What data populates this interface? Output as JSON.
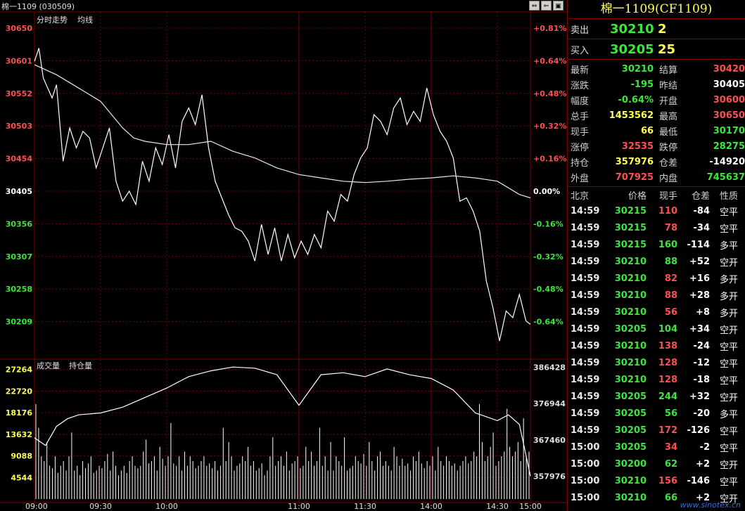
{
  "header": {
    "instrument_code": "棉一1109 (030509)"
  },
  "window_buttons": [
    "⇔",
    "⇐",
    "▣"
  ],
  "chart_data": [
    {
      "type": "line",
      "title": "分时走势",
      "legend": [
        "均线"
      ],
      "y_ticks": [
        "30650",
        "30601",
        "30552",
        "30503",
        "30454",
        "30405",
        "30356",
        "30307",
        "30258",
        "30209"
      ],
      "y_ticks_pct": [
        "+0.81%",
        "+0.64%",
        "+0.48%",
        "+0.32%",
        "+0.16%",
        "0.00%",
        "-0.16%",
        "-0.32%",
        "-0.48%",
        "-0.64%"
      ],
      "ylim": [
        30160,
        30650
      ],
      "prev_settle": 30405,
      "x_ticks": [
        "09:00",
        "09:30",
        "10:00",
        "11:00",
        "11:30",
        "14:00",
        "14:30",
        "15:00"
      ],
      "series": [
        {
          "name": "price",
          "x": [
            0,
            2,
            4,
            6,
            8,
            10,
            13,
            16,
            19,
            22,
            25,
            28,
            31,
            34,
            37,
            40,
            43,
            46,
            49,
            52,
            55,
            58,
            61,
            64,
            67,
            70,
            73,
            76,
            79,
            82,
            85,
            88,
            91,
            94,
            97,
            100,
            103,
            106,
            109,
            112,
            115,
            118,
            121,
            124,
            127,
            130,
            133,
            136,
            139,
            142,
            145,
            148,
            151,
            154,
            157,
            160,
            163,
            166,
            169,
            172,
            175,
            178,
            181,
            184,
            187,
            190,
            193,
            196,
            199,
            202,
            205,
            208,
            211,
            214,
            217,
            220,
            223,
            225
          ],
          "values": [
            30600,
            30620,
            30575,
            30560,
            30545,
            30565,
            30450,
            30500,
            30470,
            30495,
            30485,
            30440,
            30470,
            30500,
            30420,
            30390,
            30405,
            30385,
            30450,
            30420,
            30470,
            30445,
            30490,
            30440,
            30510,
            30530,
            30505,
            30550,
            30470,
            30420,
            30395,
            30370,
            30350,
            30345,
            30330,
            30300,
            30355,
            30310,
            30350,
            30300,
            30340,
            30305,
            30330,
            30310,
            30340,
            30320,
            30375,
            30360,
            30400,
            30390,
            30430,
            30455,
            30470,
            30520,
            30510,
            30490,
            30530,
            30545,
            30505,
            30525,
            30510,
            30560,
            30520,
            30495,
            30480,
            30455,
            30390,
            30395,
            30375,
            30345,
            30270,
            30230,
            30180,
            30225,
            30215,
            30250,
            30210,
            30205
          ]
        },
        {
          "name": "均线",
          "x": [
            0,
            10,
            20,
            30,
            35,
            40,
            45,
            50,
            60,
            70,
            80,
            90,
            100,
            110,
            120,
            130,
            140,
            150,
            160,
            170,
            180,
            190,
            200,
            210,
            220,
            225
          ],
          "values": [
            30595,
            30580,
            30560,
            30540,
            30520,
            30500,
            30485,
            30480,
            30475,
            30475,
            30480,
            30465,
            30455,
            30440,
            30430,
            30425,
            30420,
            30418,
            30420,
            30423,
            30425,
            30428,
            30425,
            30420,
            30400,
            30395
          ]
        }
      ]
    },
    {
      "type": "bar",
      "title": "成交量",
      "legend": [
        "持仓量"
      ],
      "y_ticks": [
        "27264",
        "22720",
        "18176",
        "13632",
        "9088",
        "4544"
      ],
      "y_ticks_right": [
        "386428",
        "376944",
        "367460",
        "357976"
      ],
      "ylim": [
        0,
        29000
      ],
      "oi_lim": [
        352000,
        388000
      ],
      "volumes": [
        20000,
        15000,
        9000,
        8000,
        12000,
        7000,
        6500,
        9000,
        5500,
        7000,
        8000,
        6000,
        9000,
        14000,
        6000,
        7000,
        5000,
        8000,
        6500,
        7500,
        9000,
        5500,
        6000,
        7000,
        6500,
        8000,
        9500,
        6000,
        10000,
        7000,
        5000,
        6000,
        7000,
        5500,
        8000,
        9000,
        7000,
        6500,
        7000,
        10000,
        12500,
        7500,
        8000,
        9000,
        6000,
        11000,
        8500,
        7000,
        9000,
        16000,
        7500,
        7000,
        9000,
        6000,
        10000,
        7000,
        9000,
        8000,
        6500,
        7000,
        8000,
        9000,
        7000,
        7500,
        6500,
        8000,
        6000,
        7000,
        15000,
        8000,
        12000,
        9000,
        6000,
        7000,
        7500,
        9000,
        8000,
        11000,
        7000,
        8000,
        6000,
        6500,
        7500,
        5000,
        6000,
        9000,
        13000,
        7000,
        8000,
        9000,
        7000,
        10000,
        6000,
        7500,
        8000,
        9000,
        6500,
        7000,
        11000,
        8000,
        10000,
        7000,
        8000,
        15000,
        7000,
        9000,
        6000,
        12000,
        6000,
        9000,
        8000,
        7000,
        13000,
        6000,
        6500,
        7000,
        9000,
        8000,
        7500,
        9500,
        7000,
        12000,
        8000,
        6000,
        9000,
        10000,
        7000,
        8000,
        7000,
        6000,
        11000,
        9000,
        7000,
        8500,
        7000,
        7500,
        6000,
        9000,
        8000,
        10000,
        7500,
        6500,
        8000,
        7000,
        9000,
        6000,
        11000,
        8000,
        7000,
        9000,
        8000,
        7000,
        7500,
        6000,
        7000,
        8000,
        9000,
        7500,
        8000,
        10000,
        9000,
        20000,
        12000,
        8000,
        9000,
        11000,
        14000,
        7000,
        8000,
        9000,
        10000,
        19000,
        11000,
        9000,
        10000,
        12000,
        8000,
        17000,
        9000,
        10000
      ],
      "open_interest": {
        "x": [
          0,
          5,
          10,
          15,
          20,
          30,
          40,
          50,
          60,
          70,
          80,
          90,
          100,
          110,
          120,
          130,
          140,
          150,
          160,
          170,
          180,
          190,
          200,
          210,
          215,
          220,
          225
        ],
        "values": [
          368000,
          366000,
          371000,
          373000,
          374000,
          374500,
          376000,
          378500,
          381000,
          384000,
          385500,
          386500,
          386200,
          384500,
          376500,
          384500,
          385000,
          384000,
          386000,
          384500,
          383500,
          380500,
          374500,
          372500,
          374000,
          371500,
          357976
        ]
      }
    }
  ],
  "panel": {
    "title": "棉一1109(CF1109)",
    "ask": {
      "label": "卖出",
      "price": "30210",
      "qty": "2"
    },
    "bid": {
      "label": "买入",
      "price": "30205",
      "qty": "25"
    },
    "stats": [
      {
        "k": "最新",
        "v": "30210",
        "vc": "green",
        "k2": "结算",
        "v2": "30420",
        "v2c": "red"
      },
      {
        "k": "涨跌",
        "v": "-195",
        "vc": "green",
        "k2": "昨结",
        "v2": "30405",
        "v2c": "white"
      },
      {
        "k": "幅度",
        "v": "-0.64%",
        "vc": "green",
        "k2": "开盘",
        "v2": "30600",
        "v2c": "red"
      },
      {
        "k": "总手",
        "v": "1453562",
        "vc": "yellow",
        "k2": "最高",
        "v2": "30650",
        "v2c": "red"
      },
      {
        "k": "现手",
        "v": "66",
        "vc": "yellow",
        "k2": "最低",
        "v2": "30170",
        "v2c": "green"
      },
      {
        "k": "涨停",
        "v": "32535",
        "vc": "red",
        "k2": "跌停",
        "v2": "28275",
        "v2c": "green"
      },
      {
        "k": "持仓",
        "v": "357976",
        "vc": "yellow",
        "k2": "仓差",
        "v2": "-14920",
        "v2c": "white"
      },
      {
        "k": "外盘",
        "v": "707925",
        "vc": "red",
        "k2": "内盘",
        "v2": "745637",
        "v2c": "green"
      }
    ],
    "trades_header": [
      "北京",
      "价格",
      "现手",
      "仓差",
      "性质"
    ],
    "trades": [
      {
        "t": "14:59",
        "p": "30215",
        "pc": "green",
        "q": "110",
        "qc": "red",
        "d": "-84",
        "n": "空平"
      },
      {
        "t": "14:59",
        "p": "30215",
        "pc": "green",
        "q": "78",
        "qc": "red",
        "d": "-34",
        "n": "空平"
      },
      {
        "t": "14:59",
        "p": "30215",
        "pc": "green",
        "q": "160",
        "qc": "green",
        "d": "-114",
        "n": "多平"
      },
      {
        "t": "14:59",
        "p": "30210",
        "pc": "green",
        "q": "88",
        "qc": "green",
        "d": "+52",
        "n": "空开"
      },
      {
        "t": "14:59",
        "p": "30210",
        "pc": "green",
        "q": "82",
        "qc": "red",
        "d": "+16",
        "n": "多开"
      },
      {
        "t": "14:59",
        "p": "30210",
        "pc": "green",
        "q": "88",
        "qc": "red",
        "d": "+28",
        "n": "多开"
      },
      {
        "t": "14:59",
        "p": "30210",
        "pc": "green",
        "q": "56",
        "qc": "red",
        "d": "+8",
        "n": "多开"
      },
      {
        "t": "14:59",
        "p": "30205",
        "pc": "green",
        "q": "104",
        "qc": "green",
        "d": "+34",
        "n": "空开"
      },
      {
        "t": "14:59",
        "p": "30210",
        "pc": "green",
        "q": "138",
        "qc": "red",
        "d": "-24",
        "n": "空平"
      },
      {
        "t": "14:59",
        "p": "30210",
        "pc": "green",
        "q": "128",
        "qc": "red",
        "d": "-12",
        "n": "空平"
      },
      {
        "t": "14:59",
        "p": "30210",
        "pc": "green",
        "q": "128",
        "qc": "red",
        "d": "-18",
        "n": "空平"
      },
      {
        "t": "14:59",
        "p": "30205",
        "pc": "green",
        "q": "244",
        "qc": "green",
        "d": "+32",
        "n": "空开"
      },
      {
        "t": "14:59",
        "p": "30205",
        "pc": "green",
        "q": "56",
        "qc": "green",
        "d": "-20",
        "n": "多平"
      },
      {
        "t": "14:59",
        "p": "30205",
        "pc": "green",
        "q": "172",
        "qc": "red",
        "d": "-126",
        "n": "空平"
      },
      {
        "t": "15:00",
        "p": "30205",
        "pc": "green",
        "q": "34",
        "qc": "red",
        "d": "-2",
        "n": "空平"
      },
      {
        "t": "15:00",
        "p": "30200",
        "pc": "green",
        "q": "62",
        "qc": "green",
        "d": "+2",
        "n": "空开"
      },
      {
        "t": "15:00",
        "p": "30210",
        "pc": "green",
        "q": "156",
        "qc": "red",
        "d": "-146",
        "n": "空平"
      },
      {
        "t": "15:00",
        "p": "30210",
        "pc": "green",
        "q": "66",
        "qc": "green",
        "d": "+2",
        "n": "空开"
      }
    ],
    "watermark": "www.sinotex.cn"
  },
  "colors": {
    "grid": "#7a0000",
    "up": "#ff5050",
    "down": "#3ae83a",
    "price_line": "#ffffff",
    "avg_line": "#e8e8e8",
    "bar": "#ffffff"
  }
}
